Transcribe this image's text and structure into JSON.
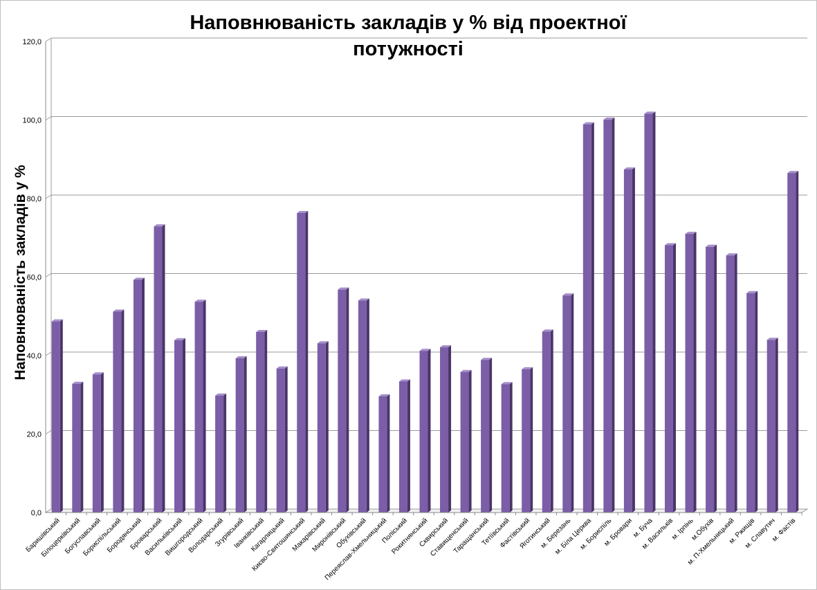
{
  "chart_data": {
    "type": "bar",
    "title": "Наповнюваність закладів у %  від проектної\nпотужності",
    "xlabel": "",
    "ylabel": "Наповнюваність закладів у %",
    "ylim": [
      0,
      120
    ],
    "yticks": [
      "0,0",
      "20,0",
      "40,0",
      "60,0",
      "80,0",
      "100,0",
      "120,0"
    ],
    "grid": true,
    "bar_color": "#7b5ea7",
    "categories": [
      "Баришівський",
      "Білоцерківський",
      "Богуславський",
      "Бориспільський",
      "Бородянський",
      "Броварський",
      "Васильківський",
      "Вишгородський",
      "Володарський",
      "Згурівський",
      "Іванківський",
      "Кагарлицький",
      "Києво-Святошинський",
      "Макарівський",
      "Миронівський",
      "Обухівський",
      "Переяслав-Хмельницький",
      "Поліський",
      "Рокитнянський",
      "Сквирський",
      "Ставищенський",
      "Таращанський",
      "Тетіївський",
      "Фастівський",
      "Яготинський",
      "м. Березань",
      "м. Біла Церква",
      "м. Бориспіль",
      "м. Бровари",
      "м. Буча",
      "м. Васильків",
      "м. Ірпінь",
      "м.Обухів",
      "м. П-Хмельницький",
      "м. Ржищів",
      "м. Славутич",
      "м. Фастів"
    ],
    "values": [
      48.7,
      32.8,
      35.2,
      51.2,
      59.3,
      72.9,
      43.9,
      53.7,
      29.8,
      39.3,
      46.0,
      36.7,
      76.3,
      43.1,
      56.8,
      54.0,
      29.6,
      33.4,
      41.2,
      42.1,
      35.8,
      38.9,
      32.7,
      36.5,
      46.1,
      55.3,
      98.9,
      100.1,
      87.4,
      101.6,
      68.1,
      71.0,
      67.7,
      65.5,
      55.9,
      44.0,
      86.5
    ]
  }
}
